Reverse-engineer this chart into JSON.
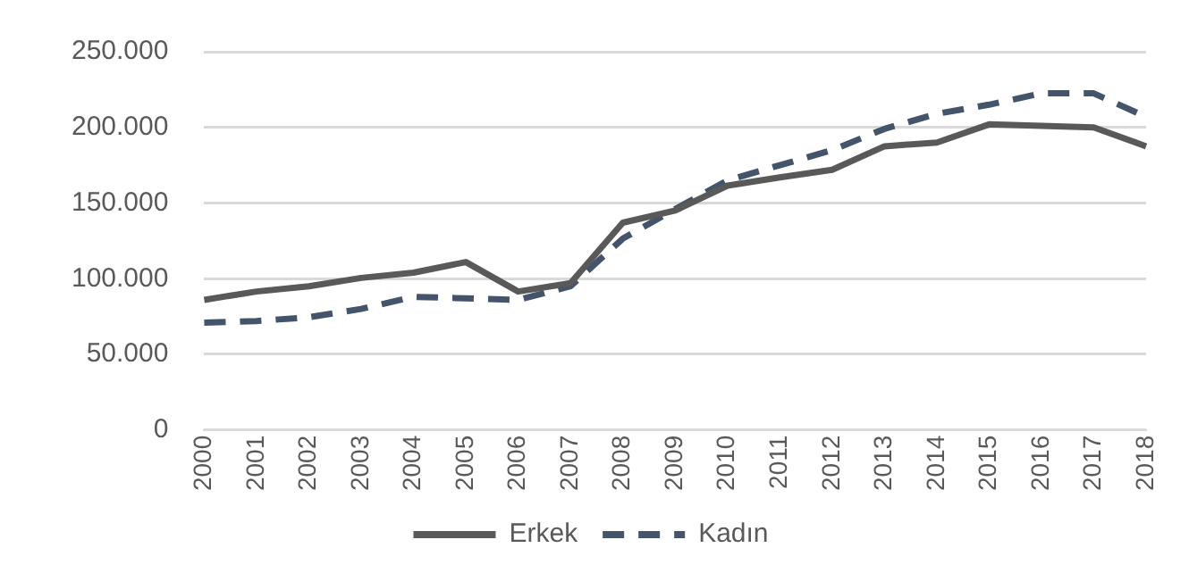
{
  "chart_data": {
    "type": "line",
    "categories": [
      "2000",
      "2001",
      "2002",
      "2003",
      "2004",
      "2005",
      "2006",
      "2007",
      "2008",
      "2009",
      "2010",
      "2011",
      "2012",
      "2013",
      "2014",
      "2015",
      "2016",
      "2017",
      "2018"
    ],
    "series": [
      {
        "name": "Erkek",
        "color": "#595959",
        "line_style": "solid",
        "values": [
          86000,
          91500,
          95000,
          100500,
          104000,
          111000,
          91500,
          97000,
          137000,
          145000,
          161500,
          167000,
          172000,
          187500,
          190000,
          202000,
          201000,
          200000,
          187500
        ]
      },
      {
        "name": "Kadın",
        "color": "#44546a",
        "line_style": "dashed",
        "values": [
          71000,
          72000,
          74500,
          80000,
          88000,
          87000,
          86000,
          95000,
          126500,
          146000,
          165000,
          175000,
          185000,
          199000,
          209000,
          215000,
          222500,
          222500,
          207000
        ]
      }
    ],
    "ylim": [
      0,
      250000
    ],
    "yticks": [
      {
        "value": 0,
        "label": "0"
      },
      {
        "value": 50000,
        "label": "50.000"
      },
      {
        "value": 100000,
        "label": "100.000"
      },
      {
        "value": 150000,
        "label": "150.000"
      },
      {
        "value": 200000,
        "label": "200.000"
      },
      {
        "value": 250000,
        "label": "250.000"
      }
    ],
    "grid": "y",
    "legend": "bottom",
    "marker": "none"
  }
}
